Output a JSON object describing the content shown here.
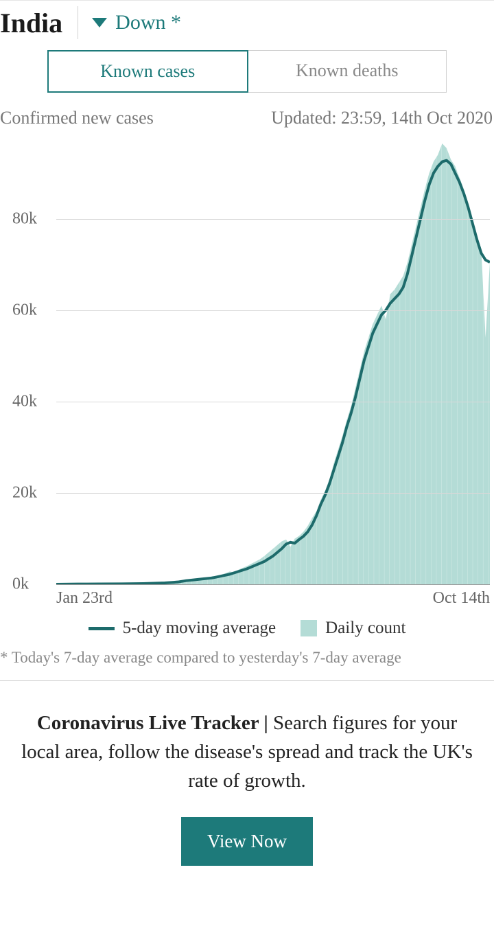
{
  "header": {
    "country": "India",
    "trend_label": "Down *",
    "trend_direction": "down",
    "trend_color": "#1d7a7a"
  },
  "tabs": {
    "active": "Known cases",
    "inactive": "Known deaths"
  },
  "subheader": {
    "left": "Confirmed new cases",
    "right": "Updated: 23:59, 14th Oct 2020"
  },
  "chart": {
    "type": "area-with-line",
    "y_axis": {
      "min": 0,
      "max": 98000,
      "ticks": [
        0,
        20000,
        40000,
        60000,
        80000
      ],
      "tick_labels": [
        "0k",
        "20k",
        "40k",
        "60k",
        "80k"
      ],
      "label_color": "#666666",
      "label_fontsize": 24
    },
    "x_axis": {
      "start_label": "Jan 23rd",
      "end_label": "Oct 14th",
      "label_color": "#666666",
      "label_fontsize": 24
    },
    "grid_color": "#d8d8d8",
    "background_color": "#ffffff",
    "line_series": {
      "name": "5-day moving average",
      "color": "#1d6b6b",
      "width": 4,
      "data": [
        [
          0,
          0
        ],
        [
          5,
          50
        ],
        [
          10,
          80
        ],
        [
          15,
          100
        ],
        [
          20,
          150
        ],
        [
          25,
          300
        ],
        [
          28,
          500
        ],
        [
          30,
          800
        ],
        [
          32,
          1000
        ],
        [
          34,
          1200
        ],
        [
          36,
          1400
        ],
        [
          38,
          1800
        ],
        [
          40,
          2200
        ],
        [
          42,
          2800
        ],
        [
          44,
          3400
        ],
        [
          46,
          4200
        ],
        [
          48,
          5000
        ],
        [
          50,
          6200
        ],
        [
          52,
          7800
        ],
        [
          53,
          8800
        ],
        [
          54,
          9200
        ],
        [
          55,
          9000
        ],
        [
          56,
          9800
        ],
        [
          57,
          10500
        ],
        [
          58,
          11500
        ],
        [
          59,
          13000
        ],
        [
          60,
          15000
        ],
        [
          61,
          17500
        ],
        [
          62,
          19500
        ],
        [
          63,
          22000
        ],
        [
          64,
          25000
        ],
        [
          65,
          28000
        ],
        [
          66,
          31000
        ],
        [
          67,
          34500
        ],
        [
          68,
          37500
        ],
        [
          69,
          41000
        ],
        [
          70,
          45000
        ],
        [
          71,
          49000
        ],
        [
          72,
          52000
        ],
        [
          73,
          55000
        ],
        [
          74,
          57000
        ],
        [
          75,
          59000
        ],
        [
          76,
          60000
        ],
        [
          77,
          61500
        ],
        [
          78,
          62500
        ],
        [
          79,
          63500
        ],
        [
          80,
          65000
        ],
        [
          81,
          68000
        ],
        [
          82,
          72000
        ],
        [
          83,
          76000
        ],
        [
          84,
          80000
        ],
        [
          85,
          84000
        ],
        [
          86,
          87500
        ],
        [
          87,
          90000
        ],
        [
          88,
          91500
        ],
        [
          89,
          92500
        ],
        [
          90,
          92800
        ],
        [
          91,
          92000
        ],
        [
          92,
          90000
        ],
        [
          93,
          88000
        ],
        [
          94,
          85500
        ],
        [
          95,
          82500
        ],
        [
          96,
          79000
        ],
        [
          97,
          75500
        ],
        [
          98,
          72500
        ],
        [
          99,
          71000
        ],
        [
          100,
          70500
        ]
      ]
    },
    "area_series": {
      "name": "Daily count",
      "color": "#b4dcd6",
      "data": [
        [
          0,
          0
        ],
        [
          3,
          30
        ],
        [
          6,
          60
        ],
        [
          9,
          90
        ],
        [
          12,
          120
        ],
        [
          15,
          180
        ],
        [
          18,
          260
        ],
        [
          21,
          380
        ],
        [
          24,
          520
        ],
        [
          27,
          700
        ],
        [
          29,
          900
        ],
        [
          30,
          1100
        ],
        [
          31,
          1000
        ],
        [
          32,
          1300
        ],
        [
          33,
          1200
        ],
        [
          34,
          1500
        ],
        [
          35,
          1400
        ],
        [
          36,
          1800
        ],
        [
          37,
          1700
        ],
        [
          38,
          2100
        ],
        [
          39,
          2400
        ],
        [
          40,
          2800
        ],
        [
          41,
          2600
        ],
        [
          42,
          3200
        ],
        [
          43,
          3600
        ],
        [
          44,
          4000
        ],
        [
          45,
          4500
        ],
        [
          46,
          5000
        ],
        [
          47,
          5500
        ],
        [
          48,
          6200
        ],
        [
          49,
          7000
        ],
        [
          50,
          7800
        ],
        [
          51,
          8600
        ],
        [
          52,
          9400
        ],
        [
          53,
          9800
        ],
        [
          54,
          8200
        ],
        [
          55,
          10000
        ],
        [
          56,
          10600
        ],
        [
          57,
          11500
        ],
        [
          58,
          12800
        ],
        [
          59,
          14500
        ],
        [
          60,
          16000
        ],
        [
          61,
          18500
        ],
        [
          62,
          20500
        ],
        [
          63,
          23000
        ],
        [
          64,
          26500
        ],
        [
          65,
          29500
        ],
        [
          66,
          32500
        ],
        [
          67,
          36000
        ],
        [
          68,
          39000
        ],
        [
          69,
          43000
        ],
        [
          70,
          47000
        ],
        [
          71,
          51000
        ],
        [
          72,
          54000
        ],
        [
          73,
          57000
        ],
        [
          74,
          59000
        ],
        [
          75,
          61000
        ],
        [
          76,
          58000
        ],
        [
          77,
          63500
        ],
        [
          78,
          64500
        ],
        [
          79,
          66000
        ],
        [
          80,
          67500
        ],
        [
          81,
          70500
        ],
        [
          82,
          74500
        ],
        [
          83,
          78500
        ],
        [
          84,
          82500
        ],
        [
          85,
          86500
        ],
        [
          86,
          90000
        ],
        [
          87,
          92500
        ],
        [
          88,
          94000
        ],
        [
          89,
          96500
        ],
        [
          90,
          95500
        ],
        [
          91,
          93000
        ],
        [
          92,
          91500
        ],
        [
          93,
          89000
        ],
        [
          94,
          86500
        ],
        [
          95,
          83500
        ],
        [
          96,
          80000
        ],
        [
          97,
          76500
        ],
        [
          98,
          73500
        ],
        [
          99,
          54000
        ],
        [
          100,
          70500
        ]
      ]
    }
  },
  "legend": {
    "line_label": "5-day moving average",
    "area_label": "Daily count"
  },
  "footnote": "* Today's 7-day average compared to yesterday's 7-day average",
  "promo": {
    "bold": "Coronavirus Live Tracker | ",
    "text": "Search figures for your local area, follow the disease's spread and track the UK's rate of growth.",
    "cta": "View Now",
    "cta_bg": "#1d7a7a",
    "cta_color": "#ffffff"
  }
}
